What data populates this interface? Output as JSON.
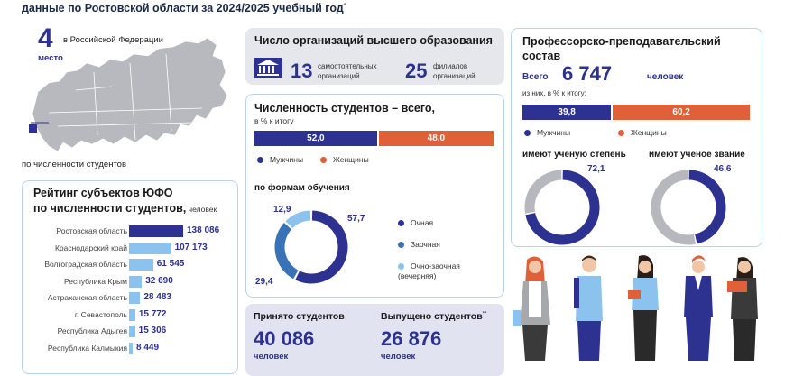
{
  "header": {
    "title": "данные по Ростовской области за 2024/2025 учебный год",
    "mark": "*"
  },
  "rank": {
    "number": "4",
    "label_top": "в Российской Федерации",
    "label_place": "место",
    "caption": "по численности  студентов",
    "map_icon": "russia-map-icon"
  },
  "orgs": {
    "title": "Число организаций высшего образования",
    "independent_count": "13",
    "independent_label": "самостоятельных организаций",
    "branches_count": "25",
    "branches_label": "филиалов организаций",
    "icon": "university-building-icon"
  },
  "students": {
    "title": "Численность студентов – всего,",
    "subtitle": "в % к итогу",
    "legend_men": "Мужчины",
    "legend_women": "Женщины",
    "forms_title": "по формам обучения",
    "forms_legend": [
      "Очная",
      "Заочная",
      "Очно-заочная (вечерняя)"
    ]
  },
  "staff": {
    "title": "Профессорско-преподавательский состав",
    "total_label": "Всего",
    "total_value": "6 747",
    "total_unit": "человек",
    "sub_label": "из них, в % к итогу:",
    "legend_men": "Мужчины",
    "legend_women": "Женщины",
    "degree_title": "имеют ученую степень",
    "rank_title": "имеют ученое звание"
  },
  "rating": {
    "title_line1": "Рейтинг субъектов ЮФО",
    "title_line2": "по численности студентов,",
    "unit": " человек"
  },
  "flow": {
    "admitted_label": "Принято студентов",
    "admitted_value": "40 086",
    "admitted_unit": "человек",
    "graduated_label": "Выпущено студентов",
    "graduated_mark": "**",
    "graduated_value": "26 876",
    "graduated_unit": "человек"
  },
  "illustration": {
    "icon": "students-group-illustration"
  },
  "colors": {
    "navy": "#2d3290",
    "orange": "#e0603a",
    "blue": "#3a72b8",
    "light_blue": "#8cc2ee",
    "grey": "#b7b8bd",
    "rating_top": "#2d3290",
    "rating_bar": "#8cc2ee"
  },
  "chart_data": [
    {
      "type": "bar",
      "categories": [
        "Мужчины",
        "Женщины"
      ],
      "values": [
        52.0,
        48.0
      ],
      "labels": [
        "52,0",
        "48,0"
      ]
    },
    {
      "type": "pie",
      "categories": [
        "Очная",
        "Заочная",
        "Очно-заочная (вечерняя)"
      ],
      "values": [
        57.7,
        29.4,
        12.9
      ],
      "labels": [
        "57,7",
        "29,4",
        "12,9"
      ]
    },
    {
      "type": "bar",
      "categories": [
        "Мужчины",
        "Женщины"
      ],
      "values": [
        39.8,
        60.2
      ],
      "labels": [
        "39,8",
        "60,2"
      ]
    },
    {
      "type": "pie",
      "categories": [
        "имеют ученую степень"
      ],
      "values": [
        72.1
      ],
      "labels": [
        "72,1"
      ]
    },
    {
      "type": "pie",
      "categories": [
        "имеют ученое звание"
      ],
      "values": [
        46.6
      ],
      "labels": [
        "46,6"
      ]
    },
    {
      "type": "bar",
      "categories": [
        "Ростовская область",
        "Краснодарский край",
        "Волгоградская область",
        "Республика Крым",
        "Астраханская область",
        "г. Севастополь",
        "Республика Адыгея",
        "Республика Калмыкия"
      ],
      "values": [
        138086,
        107173,
        61545,
        32690,
        28483,
        15772,
        15306,
        8449
      ],
      "labels": [
        "138 086",
        "107 173",
        "61 545",
        "32 690",
        "28 483",
        "15 772",
        "15 306",
        "8 449"
      ]
    }
  ]
}
